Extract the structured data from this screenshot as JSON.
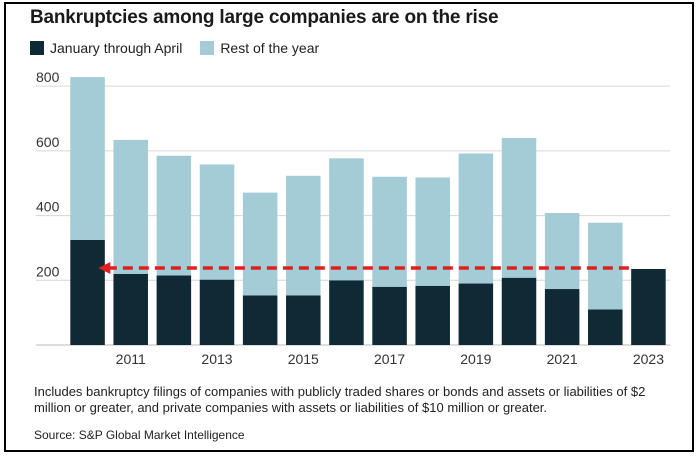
{
  "chart_data": {
    "type": "bar",
    "stacked": true,
    "title": "Bankruptcies among large companies are on the rise",
    "categories": [
      "2010",
      "2011",
      "2012",
      "2013",
      "2014",
      "2015",
      "2016",
      "2017",
      "2018",
      "2019",
      "2020",
      "2021",
      "2022",
      "2023"
    ],
    "x_tick_labels": [
      "2011",
      "2013",
      "2015",
      "2017",
      "2019",
      "2021",
      "2023"
    ],
    "y_ticks": [
      "200",
      "400",
      "600",
      "800"
    ],
    "ylim": [
      0,
      850
    ],
    "grid": true,
    "legend_position": "top-left",
    "series": [
      {
        "name": "January through April",
        "color": "#0f2a35",
        "values": [
          325,
          220,
          215,
          202,
          153,
          153,
          200,
          180,
          183,
          190,
          208,
          173,
          110,
          235
        ]
      },
      {
        "name": "Rest of the year",
        "color": "#a3ccd6",
        "values": [
          503,
          414,
          370,
          356,
          318,
          370,
          377,
          340,
          335,
          402,
          432,
          235,
          268,
          0
        ]
      }
    ],
    "reference_line": {
      "value": 235,
      "color": "#e02020",
      "style": "dashed-arrow"
    }
  },
  "footnote": "Includes bankruptcy filings of companies with publicly traded shares or bonds and assets or liabilities of $2 million or greater, and private companies with assets or liabilities of $10 million or greater.",
  "source": "Source: S&P Global Market Intelligence"
}
